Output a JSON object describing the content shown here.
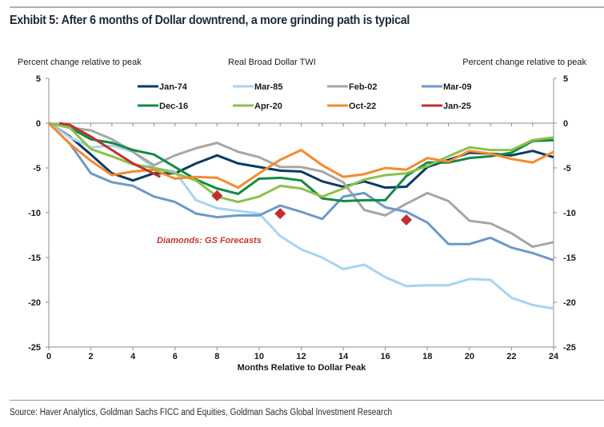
{
  "header": {
    "title": "Exhibit 5:  After 6 months of Dollar downtrend, a more grinding path is typical"
  },
  "footer": {
    "source": "Source: Haver Analytics, Goldman Sachs FICC and Equities, Goldman Sachs Global Investment Research"
  },
  "chart_data": {
    "type": "line",
    "title": "Real Broad Dollar TWI",
    "xlabel": "Months Relative to Dollar Peak",
    "ylabel_left": "Percent change relative to peak",
    "ylabel_right": "Percent change relative to peak",
    "xlim": [
      0,
      24
    ],
    "ylim": [
      -25,
      5
    ],
    "x_ticks": [
      0,
      2,
      4,
      6,
      8,
      10,
      12,
      14,
      16,
      18,
      20,
      22,
      24
    ],
    "y_ticks": [
      5,
      0,
      -5,
      -10,
      -15,
      -20,
      -25
    ],
    "grid": false,
    "legend_position": "top",
    "x": [
      0,
      1,
      2,
      3,
      4,
      5,
      6,
      7,
      8,
      9,
      10,
      11,
      12,
      13,
      14,
      15,
      16,
      17,
      18,
      19,
      20,
      21,
      22,
      23,
      24
    ],
    "series": [
      {
        "name": "Jan-74",
        "color": "#0b3a63",
        "values": [
          0,
          -1.5,
          -3.5,
          -5.6,
          -6.4,
          -5.6,
          -5.6,
          -4.5,
          -3.6,
          -4.5,
          -4.9,
          -5.3,
          -5.4,
          -6.5,
          -7.1,
          -6.5,
          -7.2,
          -7.1,
          -4.9,
          -4.1,
          -3.3,
          -3.4,
          -3.6,
          -3.1,
          -3.8
        ]
      },
      {
        "name": "Mar-85",
        "color": "#a9d3f0",
        "values": [
          0,
          -1.6,
          -2.7,
          -2.5,
          -3.2,
          -5.0,
          -5.4,
          -8.6,
          -9.5,
          -9.8,
          -10.1,
          -12.6,
          -14.1,
          -15.0,
          -16.3,
          -15.8,
          -17.2,
          -18.2,
          -18.1,
          -18.1,
          -17.4,
          -17.5,
          -19.5,
          -20.3,
          -20.7
        ]
      },
      {
        "name": "Feb-02",
        "color": "#a6a6a6",
        "values": [
          0,
          -0.5,
          -0.8,
          -1.8,
          -3.2,
          -4.7,
          -3.6,
          -2.8,
          -2.2,
          -3.2,
          -3.8,
          -4.9,
          -4.9,
          -5.4,
          -6.6,
          -9.7,
          -10.3,
          -9.0,
          -7.8,
          -8.7,
          -10.9,
          -11.2,
          -12.3,
          -13.8,
          -13.3
        ]
      },
      {
        "name": "Mar-09",
        "color": "#6f98c8",
        "values": [
          0,
          -2.3,
          -5.6,
          -6.6,
          -7.0,
          -8.2,
          -8.8,
          -10.1,
          -10.5,
          -10.3,
          -10.3,
          -9.2,
          -9.9,
          -10.7,
          -8.2,
          -7.8,
          -9.4,
          -9.9,
          -11.1,
          -13.5,
          -13.5,
          -12.8,
          -13.9,
          -14.5,
          -15.3
        ]
      },
      {
        "name": "Dec-16",
        "color": "#138a43",
        "values": [
          0,
          -0.5,
          -1.8,
          -2.2,
          -3.0,
          -3.5,
          -4.9,
          -6.3,
          -7.3,
          -7.9,
          -6.2,
          -6.1,
          -6.4,
          -8.4,
          -8.7,
          -8.6,
          -8.6,
          -5.9,
          -4.4,
          -4.4,
          -3.9,
          -3.7,
          -3.3,
          -2.0,
          -1.9
        ]
      },
      {
        "name": "Apr-20",
        "color": "#8cc04b",
        "values": [
          0,
          -0.5,
          -2.9,
          -3.7,
          -4.6,
          -5.0,
          -5.6,
          -6.4,
          -8.2,
          -8.8,
          -8.2,
          -7.0,
          -7.3,
          -8.2,
          -7.3,
          -6.3,
          -5.8,
          -5.6,
          -4.8,
          -3.7,
          -2.7,
          -3.0,
          -3.0,
          -1.9,
          -1.6
        ]
      },
      {
        "name": "Oct-22",
        "color": "#f58a2e",
        "values": [
          0,
          -2.3,
          -4.2,
          -5.8,
          -5.4,
          -5.2,
          -6.2,
          -6.0,
          -6.1,
          -7.2,
          -5.6,
          -4.1,
          -3.0,
          -4.7,
          -6.0,
          -5.7,
          -5.0,
          -5.2,
          -3.9,
          -4.3,
          -3.1,
          -3.4,
          -4.0,
          -4.4,
          -3.2
        ]
      },
      {
        "name": "Jan-25",
        "color": "#c0302f",
        "x": [
          0.5,
          1,
          2,
          3,
          4,
          5.3
        ],
        "values": [
          0,
          -0.2,
          -1.5,
          -3.0,
          -4.5,
          -6.0
        ]
      }
    ],
    "forecasts": {
      "label": "Diamonds: GS Forecasts",
      "color": "#c0302f",
      "points": [
        {
          "x": 8,
          "y": -8.1
        },
        {
          "x": 11,
          "y": -10.1
        },
        {
          "x": 17,
          "y": -10.8
        }
      ]
    }
  }
}
